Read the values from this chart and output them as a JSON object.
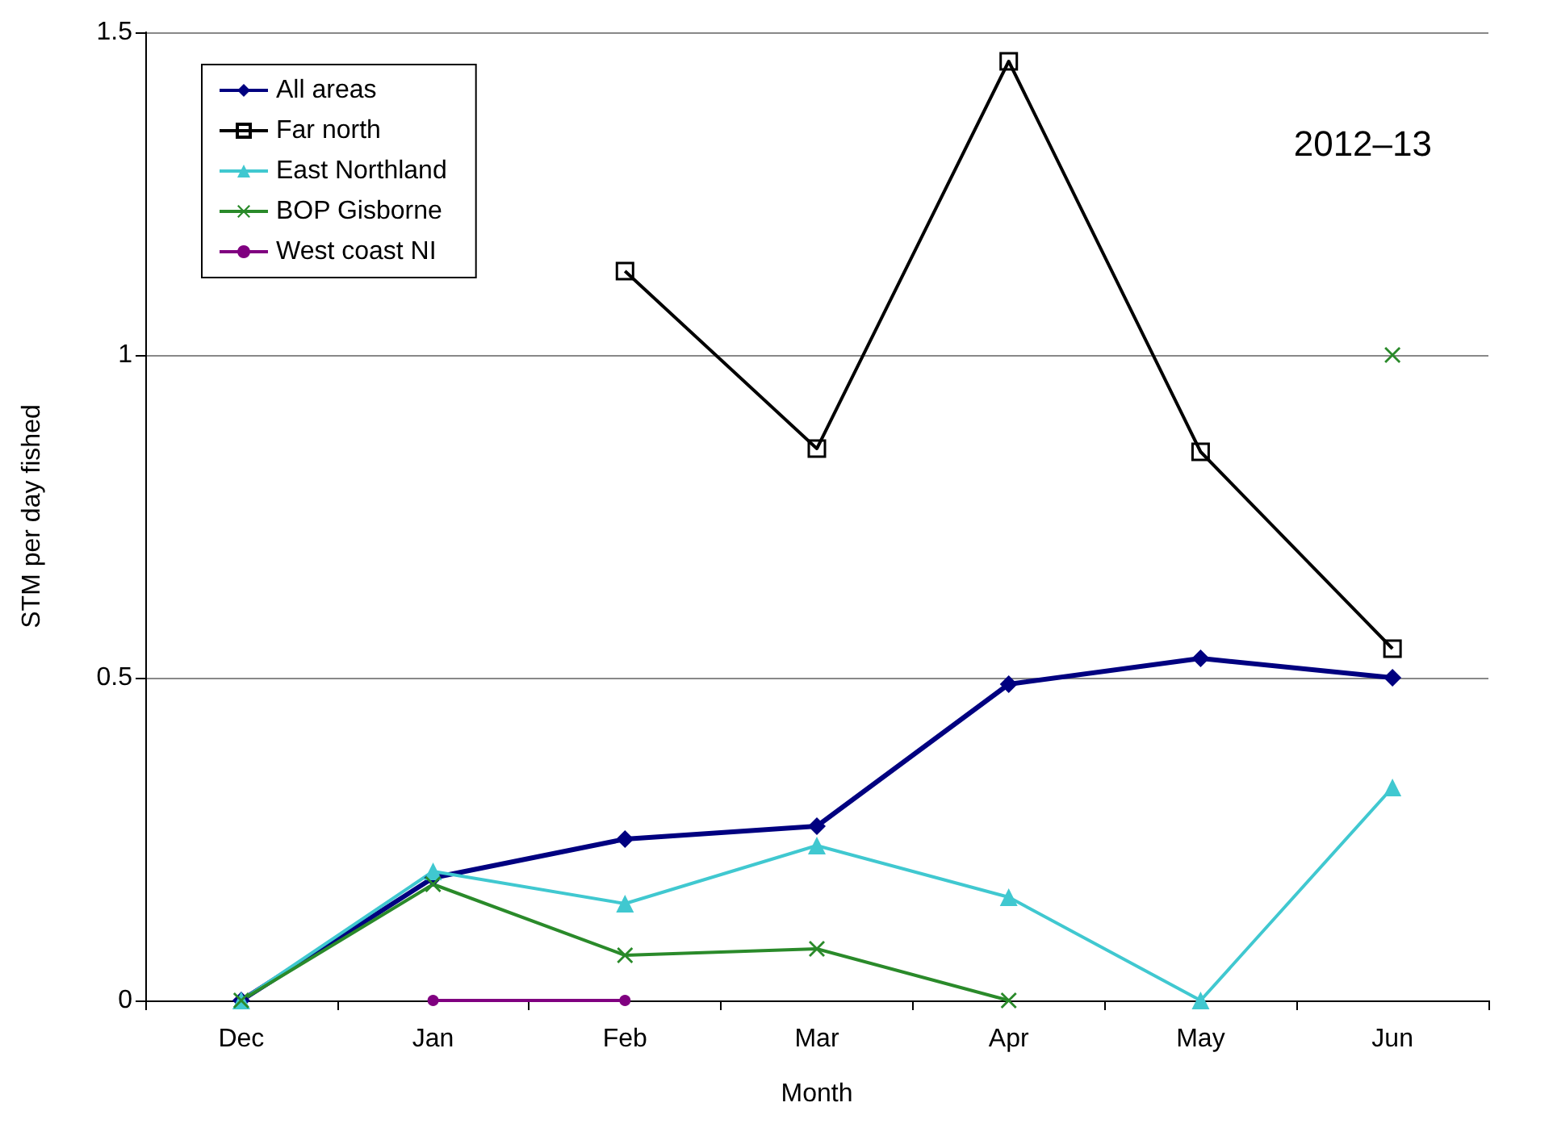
{
  "chart_data": {
    "type": "line",
    "xlabel": "Month",
    "ylabel": "STM per day fished",
    "annotations": [
      "2012–13"
    ],
    "categories": [
      "Dec",
      "Jan",
      "Feb",
      "Mar",
      "Apr",
      "May",
      "Jun"
    ],
    "series": [
      {
        "name": "All areas",
        "color": "#000080",
        "marker": "diamond",
        "values": [
          0,
          0.19,
          0.25,
          0.27,
          0.49,
          0.53,
          0.5
        ]
      },
      {
        "name": "Far north",
        "color": "#000000",
        "marker": "square",
        "values": [
          null,
          null,
          1.13,
          0.855,
          1.455,
          0.85,
          0.545
        ]
      },
      {
        "name": "East Northland",
        "color": "#40c8d0",
        "marker": "triangle",
        "values": [
          0,
          0.2,
          0.15,
          0.24,
          0.16,
          0,
          0.33
        ]
      },
      {
        "name": "BOP Gisborne",
        "color": "#2a8a2a",
        "marker": "cross",
        "values": [
          0,
          0.18,
          0.07,
          0.08,
          0,
          null,
          1.0
        ]
      },
      {
        "name": "West coast NI",
        "color": "#800080",
        "marker": "circle",
        "values": [
          null,
          0,
          0,
          null,
          null,
          null,
          null
        ]
      }
    ],
    "ylim": [
      0,
      1.5
    ],
    "yticks": [
      0,
      0.5,
      1,
      1.5
    ],
    "grid": "y",
    "legend": "top left"
  }
}
